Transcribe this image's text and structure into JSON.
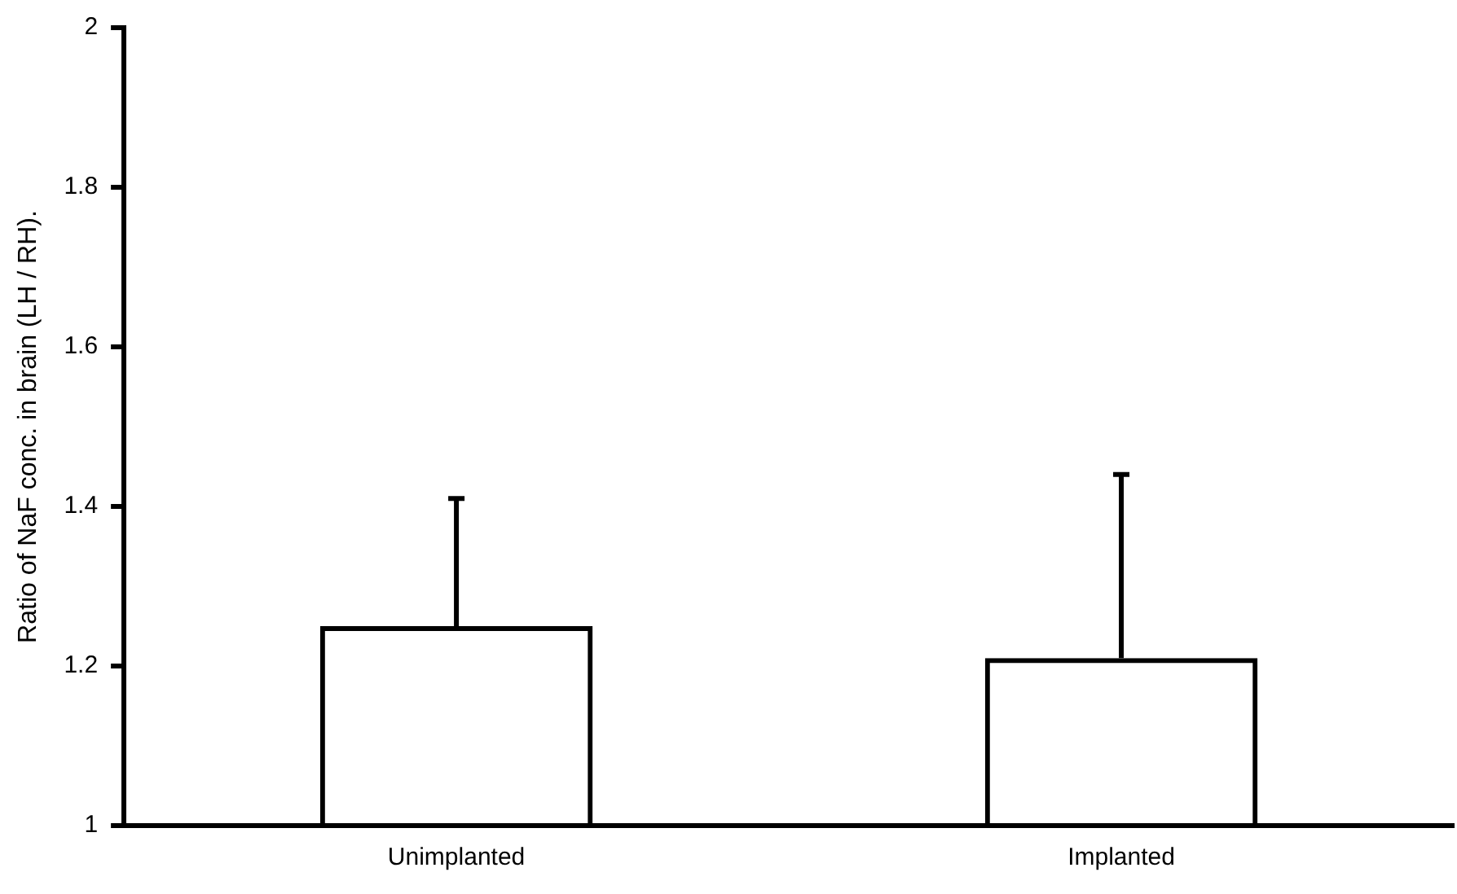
{
  "chart_data": {
    "type": "bar",
    "ylabel": "Ratio of NaF conc. in brain (LH / RH).",
    "categories": [
      "Unimplanted",
      "Implanted"
    ],
    "values": [
      1.25,
      1.21
    ],
    "errors": [
      [
        1.25,
        1.41
      ],
      [
        1.21,
        1.44
      ]
    ],
    "color": "#000000",
    "ylim": [
      1,
      2
    ],
    "yticks": [
      1,
      1.2,
      1.4,
      1.6,
      1.8,
      2
    ],
    "grid": false,
    "legend": false
  }
}
